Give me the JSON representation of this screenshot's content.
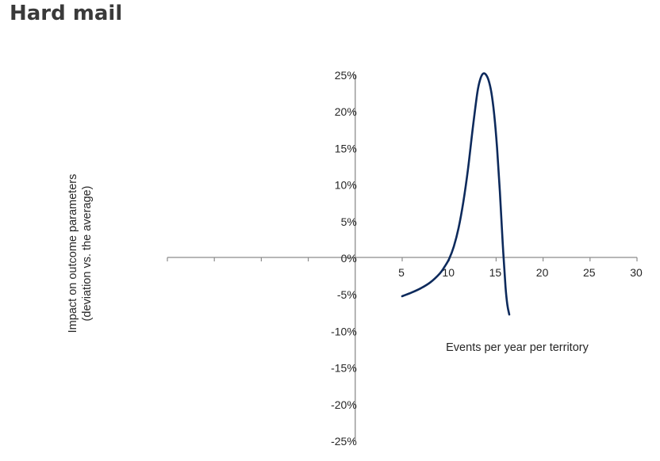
{
  "page": {
    "title": "Hard mail"
  },
  "chart_data": {
    "type": "line",
    "title": "",
    "xlabel": "Events per year per territory",
    "ylabel": [
      "Impact on outcome parameters",
      "(deviation vs. the average)"
    ],
    "xlim": [
      -20,
      30
    ],
    "ylim": [
      -0.25,
      0.25
    ],
    "x_tick_labels": [
      "5",
      "10",
      "15",
      "20",
      "25",
      "30"
    ],
    "x_tick_values": [
      5,
      10,
      15,
      20,
      25,
      30
    ],
    "x_minor_ticks": [
      -20,
      -15,
      -10,
      -5,
      0
    ],
    "y_tick_labels": [
      "25%",
      "20%",
      "15%",
      "10%",
      "5%",
      "0%",
      "-5%",
      "-10%",
      "-15%",
      "-20%",
      "-25%"
    ],
    "y_tick_values": [
      0.25,
      0.2,
      0.15,
      0.1,
      0.05,
      0,
      -0.05,
      -0.1,
      -0.15,
      -0.2,
      -0.25
    ],
    "grid": false,
    "line_color": "#0d2a5c",
    "axis_color": "#8c8c8c",
    "series": [
      {
        "x": [
          5,
          6,
          7,
          8,
          9,
          9.5,
          10,
          10.5,
          11,
          11.5,
          12,
          12.5,
          13,
          13.3,
          13.6,
          13.9,
          14.2,
          14.5,
          14.8,
          15.1,
          15.4,
          15.7,
          16,
          16.2,
          16.4
        ],
        "values": [
          -0.053,
          -0.048,
          -0.042,
          -0.034,
          -0.022,
          -0.013,
          -0.002,
          0.015,
          0.04,
          0.075,
          0.12,
          0.175,
          0.225,
          0.243,
          0.251,
          0.25,
          0.242,
          0.225,
          0.195,
          0.15,
          0.09,
          0.02,
          -0.04,
          -0.065,
          -0.078
        ]
      }
    ]
  }
}
